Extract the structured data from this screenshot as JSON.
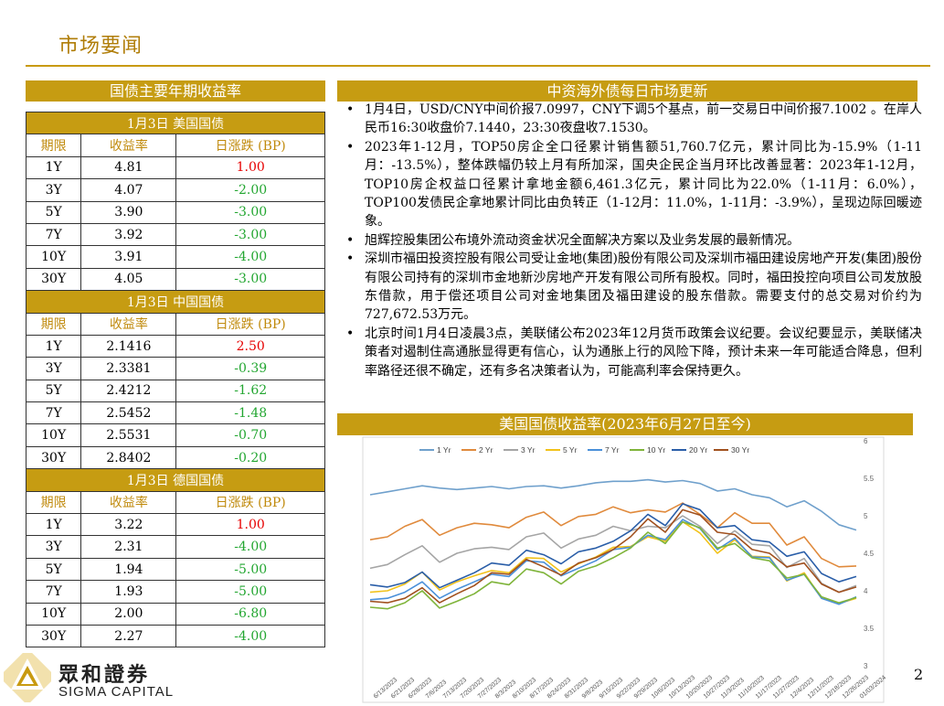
{
  "page": {
    "title": "市场要闻",
    "page_number": "2"
  },
  "left": {
    "header": "国债主要年期收益率",
    "columns": [
      "期限",
      "收益率",
      "日涨跌 (BP)"
    ],
    "sections": [
      {
        "title": "1月3日  美国国债",
        "rows": [
          {
            "term": "1Y",
            "yield": "4.81",
            "change": "1.00",
            "dir": "up"
          },
          {
            "term": "3Y",
            "yield": "4.07",
            "change": "-2.00",
            "dir": "down"
          },
          {
            "term": "5Y",
            "yield": "3.90",
            "change": "-3.00",
            "dir": "down"
          },
          {
            "term": "7Y",
            "yield": "3.92",
            "change": "-3.00",
            "dir": "down"
          },
          {
            "term": "10Y",
            "yield": "3.91",
            "change": "-4.00",
            "dir": "down"
          },
          {
            "term": "30Y",
            "yield": "4.05",
            "change": "-3.00",
            "dir": "down"
          }
        ]
      },
      {
        "title": "1月3日  中国国债",
        "rows": [
          {
            "term": "1Y",
            "yield": "2.1416",
            "change": "2.50",
            "dir": "up"
          },
          {
            "term": "3Y",
            "yield": "2.3381",
            "change": "-0.39",
            "dir": "down"
          },
          {
            "term": "5Y",
            "yield": "2.4212",
            "change": "-1.62",
            "dir": "down"
          },
          {
            "term": "7Y",
            "yield": "2.5452",
            "change": "-1.48",
            "dir": "down"
          },
          {
            "term": "10Y",
            "yield": "2.5531",
            "change": "-0.70",
            "dir": "down"
          },
          {
            "term": "30Y",
            "yield": "2.8402",
            "change": "-0.20",
            "dir": "down"
          }
        ]
      },
      {
        "title": "1月3日  德国国债",
        "rows": [
          {
            "term": "1Y",
            "yield": "3.22",
            "change": "1.00",
            "dir": "up"
          },
          {
            "term": "3Y",
            "yield": "2.31",
            "change": "-4.00",
            "dir": "down"
          },
          {
            "term": "5Y",
            "yield": "1.94",
            "change": "-5.00",
            "dir": "down"
          },
          {
            "term": "7Y",
            "yield": "1.93",
            "change": "-5.00",
            "dir": "down"
          },
          {
            "term": "10Y",
            "yield": "2.00",
            "change": "-6.80",
            "dir": "down"
          },
          {
            "term": "30Y",
            "yield": "2.27",
            "change": "-4.00",
            "dir": "down"
          }
        ]
      }
    ]
  },
  "news": {
    "header": "中资海外债每日市场更新",
    "bullet": "•",
    "items": [
      "1月4日，USD/CNY中间价报7.0997，CNY下调5个基点，前一交易日中间价报7.1002 。在岸人民币16:30收盘价7.1440，23:30夜盘收7.1530。",
      "2023年1-12月，TOP50房企全口径累计销售额51,760.7亿元，累计同比为-15.9%（1-11月：-13.5%），整体跌幅仍较上月有所加深，国央企民企当月环比改善显著：2023年1-12月，TOP10房企权益口径累计拿地金额6,461.3亿元，累计同比为22.0%（1-11月：6.0%），TOP100发债民企拿地累计同比由负转正（1-12月：11.0%，1-11月：-3.9%），呈现边际回暖迹象。",
      "旭辉控股集团公布境外流动资金状况全面解决方案以及业务发展的最新情况。",
      "深圳市福田投资控股有限公司受让金地(集团)股份有限公司及深圳市福田建设房地产开发(集团)股份有限公司持有的深圳市金地新沙房地产开发有限公司所有股权。同时，福田投控向项目公司发放股东借款，用于偿还项目公司对金地集团及福田建设的股东借款。需要支付的总交易对价约为727,672.53万元。",
      "北京时间1月4日凌晨3点，美联储公布2023年12月货币政策会议纪要。会议纪要显示，美联储决策者对遏制住高通胀显得更有信心，认为通胀上行的风险下降，预计未来一年可能适合降息，但利率路径还很不确定，还有多名决策者认为，可能高利率会保持更久。"
    ]
  },
  "chart_header": "美国国债收益率(2023年6月27日至今)",
  "chart_data": {
    "type": "line",
    "title": "美国国债收益率(2023年6月27日至今)",
    "ylim": [
      3,
      6
    ],
    "yticks": [
      "3",
      "3.5",
      "4",
      "4.5",
      "5",
      "5.5",
      "6"
    ],
    "x": [
      "6/13/2023",
      "6/21/2023",
      "6/28/2023",
      "7/6/2023",
      "7/13/2023",
      "7/20/2023",
      "7/27/2023",
      "8/3/2023",
      "8/10/2023",
      "8/17/2023",
      "8/24/2023",
      "8/31/2023",
      "9/8/2023",
      "9/15/2023",
      "9/22/2023",
      "9/29/2023",
      "10/6/2023",
      "10/13/2023",
      "10/20/2023",
      "10/27/2023",
      "11/3/2023",
      "11/10/2023",
      "11/17/2023",
      "11/27/2023",
      "12/4/2023",
      "12/11/2023",
      "12/18/2023",
      "12/26/2023",
      "01/03/2024"
    ],
    "series": [
      {
        "name": "1 Yr",
        "color": "#6fa0cc",
        "values": [
          5.28,
          5.32,
          5.36,
          5.4,
          5.37,
          5.35,
          5.37,
          5.39,
          5.36,
          5.39,
          5.4,
          5.37,
          5.4,
          5.44,
          5.46,
          5.46,
          5.48,
          5.45,
          5.47,
          5.43,
          5.33,
          5.36,
          5.28,
          5.24,
          5.12,
          5.2,
          5.06,
          4.88,
          4.81
        ]
      },
      {
        "name": "2 Yr",
        "color": "#e08a3c",
        "values": [
          4.68,
          4.72,
          4.86,
          4.95,
          4.74,
          4.84,
          4.9,
          4.88,
          4.84,
          4.98,
          5.05,
          4.87,
          4.99,
          5.02,
          5.12,
          5.04,
          5.08,
          5.05,
          5.17,
          5.02,
          4.84,
          5.04,
          4.9,
          4.9,
          4.61,
          4.72,
          4.43,
          4.32,
          4.33
        ]
      },
      {
        "name": "3 Yr",
        "color": "#a5a5a5",
        "values": [
          4.3,
          4.35,
          4.48,
          4.6,
          4.38,
          4.5,
          4.56,
          4.58,
          4.55,
          4.72,
          4.77,
          4.57,
          4.69,
          4.74,
          4.86,
          4.8,
          4.86,
          4.84,
          5.0,
          4.86,
          4.63,
          4.8,
          4.62,
          4.6,
          4.31,
          4.43,
          4.1,
          3.98,
          4.07
        ]
      },
      {
        "name": "5 Yr",
        "color": "#f2c21a",
        "values": [
          3.98,
          4.0,
          4.09,
          4.25,
          4.01,
          4.12,
          4.2,
          4.27,
          4.24,
          4.44,
          4.43,
          4.25,
          4.36,
          4.45,
          4.58,
          4.59,
          4.72,
          4.66,
          4.92,
          4.77,
          4.5,
          4.68,
          4.46,
          4.45,
          4.13,
          4.24,
          3.9,
          3.83,
          3.9
        ]
      },
      {
        "name": "7 Yr",
        "color": "#4a90d9",
        "values": [
          3.88,
          3.9,
          3.98,
          4.12,
          3.9,
          4.02,
          4.12,
          4.22,
          4.19,
          4.4,
          4.38,
          4.2,
          4.3,
          4.4,
          4.55,
          4.58,
          4.74,
          4.68,
          4.95,
          4.83,
          4.55,
          4.7,
          4.45,
          4.44,
          4.14,
          4.22,
          3.9,
          3.82,
          3.92
        ]
      },
      {
        "name": "10 Yr",
        "color": "#7fb43a",
        "values": [
          3.78,
          3.76,
          3.84,
          4.0,
          3.77,
          3.86,
          3.96,
          4.12,
          4.08,
          4.29,
          4.24,
          4.09,
          4.26,
          4.33,
          4.44,
          4.57,
          4.78,
          4.63,
          4.92,
          4.84,
          4.57,
          4.63,
          4.44,
          4.4,
          4.17,
          4.22,
          3.92,
          3.84,
          3.91
        ]
      },
      {
        "name": "20 Yr",
        "color": "#2a5ea8",
        "values": [
          4.08,
          4.05,
          4.11,
          4.25,
          4.04,
          4.14,
          4.24,
          4.37,
          4.34,
          4.54,
          4.48,
          4.36,
          4.52,
          4.57,
          4.66,
          4.8,
          5.02,
          4.87,
          5.16,
          5.08,
          4.84,
          4.87,
          4.68,
          4.65,
          4.46,
          4.52,
          4.23,
          4.12,
          4.19
        ]
      },
      {
        "name": "30 Yr",
        "color": "#a0501e",
        "values": [
          3.86,
          3.84,
          3.9,
          4.04,
          3.84,
          3.96,
          4.07,
          4.24,
          4.22,
          4.42,
          4.32,
          4.21,
          4.37,
          4.44,
          4.55,
          4.72,
          4.96,
          4.78,
          5.08,
          5.01,
          4.78,
          4.75,
          4.55,
          4.5,
          4.32,
          4.37,
          4.09,
          3.98,
          4.05
        ]
      }
    ]
  },
  "footer": {
    "logo_cn": "眾和證券",
    "logo_en": "SIGMA CAPITAL"
  }
}
